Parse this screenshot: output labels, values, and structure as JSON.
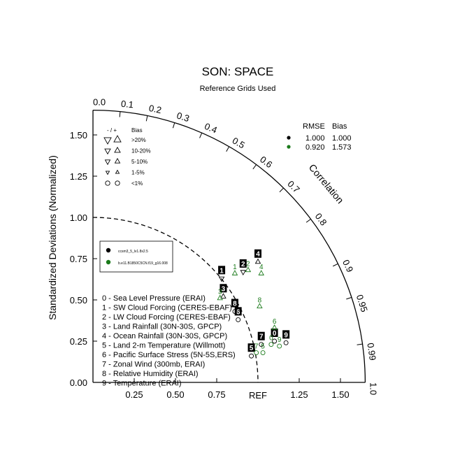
{
  "chart_data": {
    "type": "scatter",
    "title": "SON: SPACE",
    "subtitle": "Reference Grids Used",
    "ylabel": "Standardized Deviations (Normalized)",
    "corr_label": "Correlation",
    "ref_label": "REF",
    "std_range": [
      0,
      1.65
    ],
    "x_ticks": [
      {
        "v": 0.25,
        "label": "0.25"
      },
      {
        "v": 0.5,
        "label": "0.50"
      },
      {
        "v": 0.75,
        "label": "0.75"
      },
      {
        "v": 1.25,
        "label": "1.25"
      },
      {
        "v": 1.5,
        "label": "1.50"
      }
    ],
    "y_ticks": [
      {
        "v": 0,
        "label": "0.00"
      },
      {
        "v": 0.25,
        "label": "0.25"
      },
      {
        "v": 0.5,
        "label": "0.50"
      },
      {
        "v": 0.75,
        "label": "0.75"
      },
      {
        "v": 1.0,
        "label": "1.00"
      },
      {
        "v": 1.25,
        "label": "1.25"
      },
      {
        "v": 1.5,
        "label": "1.50"
      }
    ],
    "corr_ticks": [
      {
        "v": 0.0,
        "label": "0.0"
      },
      {
        "v": 0.1,
        "label": "0.1"
      },
      {
        "v": 0.2,
        "label": "0.2"
      },
      {
        "v": 0.3,
        "label": "0.3"
      },
      {
        "v": 0.4,
        "label": "0.4"
      },
      {
        "v": 0.5,
        "label": "0.5"
      },
      {
        "v": 0.6,
        "label": "0.6"
      },
      {
        "v": 0.7,
        "label": "0.7"
      },
      {
        "v": 0.8,
        "label": "0.8"
      },
      {
        "v": 0.9,
        "label": "0.9"
      },
      {
        "v": 0.95,
        "label": "0.95"
      },
      {
        "v": 0.99,
        "label": "0.99"
      },
      {
        "v": 1.0,
        "label": "1.0"
      }
    ],
    "reference_arc_std": 1.0,
    "bias_legend": {
      "header_sign": "- / +",
      "header_bias": "Bias",
      "rows": [
        ">20%",
        "10-20%",
        "5-10%",
        "1-5%",
        "<1%"
      ]
    },
    "rmse_legend": {
      "header_rmse": "RMSE",
      "header_bias": "Bias",
      "rows": [
        {
          "color": "#000000",
          "rmse": "1.000",
          "bias": "1.000"
        },
        {
          "color": "#1a7a1a",
          "rmse": "0.920",
          "bias": "1.573"
        }
      ]
    },
    "series": [
      {
        "name": "ccsm3_5_lv1.8x2.5",
        "color": "#000000"
      },
      {
        "name": "b.e11.B1850C5CN.f19_g16.008",
        "color": "#1a7a1a"
      }
    ],
    "variables": [
      "0 - Sea Level Pressure (ERAI)",
      "1 - SW Cloud Forcing (CERES-EBAF)",
      "2 - LW Cloud Forcing (CERES-EBAF)",
      "3 - Land Rainfall (30N-30S, GPCP)",
      "4 - Ocean Rainfall (30N-30S, GPCP)",
      "5 - Land 2-m Temperature (Willmott)",
      "6 - Pacific Surface Stress (5N-5S,ERS)",
      "7 - Zonal Wind (300mb, ERAI)",
      "8 - Relative Humidity (ERAI)",
      "9 - Temperature (ERAI)"
    ],
    "points": [
      {
        "series": 0,
        "id": "0",
        "x": 1.1,
        "y": 0.25,
        "marker": "circle"
      },
      {
        "series": 0,
        "id": "1",
        "x": 0.78,
        "y": 0.63,
        "marker": "tri_down"
      },
      {
        "series": 0,
        "id": "2",
        "x": 0.91,
        "y": 0.67,
        "marker": "tri_down"
      },
      {
        "series": 0,
        "id": "3",
        "x": 0.79,
        "y": 0.52,
        "marker": "tri_up"
      },
      {
        "series": 0,
        "id": "4",
        "x": 1.0,
        "y": 0.73,
        "marker": "tri_up"
      },
      {
        "series": 0,
        "id": "5",
        "x": 0.96,
        "y": 0.16,
        "marker": "circle"
      },
      {
        "series": 0,
        "id": "6",
        "x": 0.88,
        "y": 0.38,
        "marker": "circle"
      },
      {
        "series": 0,
        "id": "7",
        "x": 1.02,
        "y": 0.23,
        "marker": "circle"
      },
      {
        "series": 0,
        "id": "8",
        "x": 0.86,
        "y": 0.43,
        "marker": "circle"
      },
      {
        "series": 0,
        "id": "9",
        "x": 1.17,
        "y": 0.24,
        "marker": "circle"
      },
      {
        "series": 1,
        "id": "0",
        "x": 1.08,
        "y": 0.23,
        "marker": "circle"
      },
      {
        "series": 1,
        "id": "1",
        "x": 0.86,
        "y": 0.66,
        "marker": "tri_up"
      },
      {
        "series": 1,
        "id": "2",
        "x": 0.94,
        "y": 0.68,
        "marker": "tri_up"
      },
      {
        "series": 1,
        "id": "3",
        "x": 0.77,
        "y": 0.51,
        "marker": "tri_up"
      },
      {
        "series": 1,
        "id": "4",
        "x": 1.02,
        "y": 0.66,
        "marker": "tri_up"
      },
      {
        "series": 1,
        "id": "5",
        "x": 1.03,
        "y": 0.18,
        "marker": "circle"
      },
      {
        "series": 1,
        "id": "6",
        "x": 1.1,
        "y": 0.33,
        "marker": "tri_up"
      },
      {
        "series": 1,
        "id": "7",
        "x": 0.99,
        "y": 0.18,
        "marker": "circle"
      },
      {
        "series": 1,
        "id": "8",
        "x": 1.01,
        "y": 0.46,
        "marker": "tri_up"
      },
      {
        "series": 1,
        "id": "9",
        "x": 1.13,
        "y": 0.22,
        "marker": "circle"
      }
    ]
  }
}
